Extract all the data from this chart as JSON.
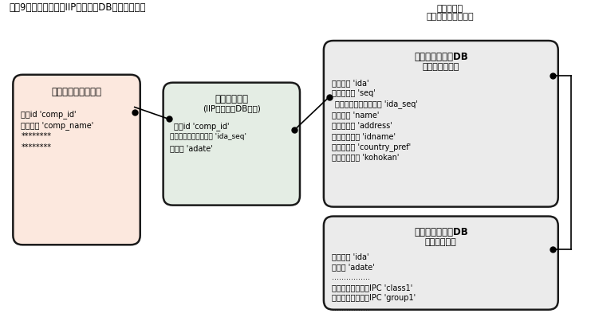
{
  "title": "図表9　企業名辞書とIIPパテントDBとの接続方法",
  "external_label_line1": "外部データ",
  "external_label_line2": "国内特許出願データ",
  "box1": {
    "title": "企業名辞書テーブル",
    "line1": "企業id 'comp_id'",
    "line2": "企業名称 'comp_name'",
    "line3": "********",
    "line4": "********",
    "bg": "#fce8de",
    "border": "#1a1a1a"
  },
  "box2": {
    "title": "接続テーブル",
    "subtitle": "(IIPパテントDB対応)",
    "line1": "企業id 'comp_id'",
    "line2": "出願番号＋出願人順序 'ida_seq'",
    "line3": "出願日 'adate'",
    "bg": "#e4ede4",
    "border": "#1a1a1a"
  },
  "box3": {
    "title": "ＩＩＰパテントDB",
    "subtitle": "出願人テーブル",
    "line1": "出願番号 'ida'",
    "line2": "出願人順序 'seq'",
    "line3": "出願番号＋出願人順序 'ida_seq'",
    "line4": "出願人名 'name'",
    "line5": "出願人住所 'address'",
    "line6": "出願人コード 'idname'",
    "line7": "国県コード 'country_pref'",
    "line8": "偽法官コード 'kohokan'",
    "bg": "#ebebeb",
    "border": "#1a1a1a"
  },
  "box4": {
    "title": "ＩＩＰパテントDB",
    "subtitle": "出願テーブル",
    "line1": "出願番号 'ida'",
    "line2": "出願日 'adate'",
    "line3": "................",
    "line4": "公開・公表の筆頭IPC 'class1'",
    "line5": "公開・公表の筆頭IPC 'group1'",
    "line6": "................",
    "bg": "#ebebeb",
    "border": "#1a1a1a"
  },
  "figsize": [
    7.41,
    4.08
  ],
  "dpi": 100
}
